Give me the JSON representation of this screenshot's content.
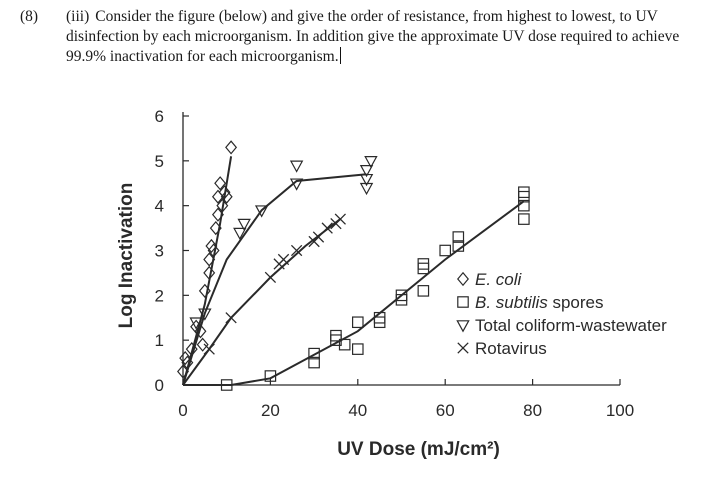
{
  "question": {
    "number": "(8)",
    "part": "(iii)",
    "text": "Consider the figure (below) and give the order of resistance, from highest to lowest, to UV disinfection by each microorganism. In addition give the approximate UV dose required to achieve 99.9% inactivation for each microorganism."
  },
  "chart_data": {
    "type": "scatter",
    "xlabel": "UV Dose  (mJ/cm²)",
    "ylabel": "Log Inactivation",
    "xlim": [
      0,
      100
    ],
    "ylim": [
      0,
      6
    ],
    "xticks": [
      "0",
      "20",
      "40",
      "60",
      "80",
      "100"
    ],
    "yticks": [
      "0",
      "1",
      "2",
      "3",
      "4",
      "5",
      "6"
    ],
    "legend_position": "right-middle",
    "grid": false,
    "series": [
      {
        "name": "E. coli",
        "name_parts": [
          {
            "text": "E. coli",
            "italic": true
          }
        ],
        "marker": "diamond",
        "points": [
          [
            0,
            0.3
          ],
          [
            0.5,
            0.6
          ],
          [
            1,
            0.5
          ],
          [
            2,
            0.8
          ],
          [
            3,
            1.3
          ],
          [
            4,
            1.2
          ],
          [
            4.5,
            0.9
          ],
          [
            5,
            2.1
          ],
          [
            6,
            2.5
          ],
          [
            6,
            2.8
          ],
          [
            6.5,
            3.1
          ],
          [
            7,
            3.0
          ],
          [
            7.5,
            3.5
          ],
          [
            8,
            3.8
          ],
          [
            8,
            4.2
          ],
          [
            8.5,
            4.5
          ],
          [
            9,
            4.0
          ],
          [
            9.5,
            4.3
          ],
          [
            10,
            4.2
          ],
          [
            11,
            5.3
          ]
        ],
        "fit": [
          [
            0,
            0
          ],
          [
            5,
            1.8
          ],
          [
            8.5,
            3.6
          ],
          [
            11,
            5.1
          ]
        ]
      },
      {
        "name": "B. subtilis spores",
        "name_parts": [
          {
            "text": "B. subtilis",
            "italic": true
          },
          {
            "text": " spores",
            "italic": false
          }
        ],
        "marker": "square",
        "points": [
          [
            10,
            0
          ],
          [
            20,
            0.2
          ],
          [
            30,
            0.5
          ],
          [
            30,
            0.7
          ],
          [
            35,
            1.0
          ],
          [
            35,
            1.1
          ],
          [
            37,
            0.9
          ],
          [
            40,
            0.8
          ],
          [
            40,
            1.4
          ],
          [
            45,
            1.4
          ],
          [
            45,
            1.5
          ],
          [
            50,
            1.9
          ],
          [
            50,
            2.0
          ],
          [
            55,
            2.1
          ],
          [
            55,
            2.6
          ],
          [
            55,
            2.7
          ],
          [
            60,
            3.0
          ],
          [
            63,
            3.1
          ],
          [
            63,
            3.3
          ],
          [
            78,
            3.7
          ],
          [
            78,
            4.0
          ],
          [
            78,
            4.2
          ],
          [
            78,
            4.3
          ]
        ],
        "fit": [
          [
            0,
            0
          ],
          [
            11,
            0
          ],
          [
            20,
            0.15
          ],
          [
            40,
            1.2
          ],
          [
            60,
            2.8
          ],
          [
            78,
            4.1
          ]
        ]
      },
      {
        "name": "Total coliform-wastewater",
        "name_parts": [
          {
            "text": "Total coliform-wastewater",
            "italic": false
          }
        ],
        "marker": "triangle-down",
        "points": [
          [
            3,
            1.4
          ],
          [
            5,
            1.6
          ],
          [
            13,
            3.4
          ],
          [
            14,
            3.6
          ],
          [
            18,
            3.9
          ],
          [
            26,
            4.5
          ],
          [
            26,
            4.9
          ],
          [
            42,
            4.4
          ],
          [
            42,
            4.6
          ],
          [
            42,
            4.8
          ],
          [
            43,
            5.0
          ]
        ],
        "fit": [
          [
            0,
            0
          ],
          [
            5,
            1.6
          ],
          [
            10,
            2.8
          ],
          [
            18,
            3.9
          ],
          [
            26,
            4.55
          ],
          [
            42,
            4.7
          ]
        ]
      },
      {
        "name": "Rotavirus",
        "name_parts": [
          {
            "text": "Rotavirus",
            "italic": false
          }
        ],
        "marker": "x",
        "points": [
          [
            6,
            0.8
          ],
          [
            11,
            1.5
          ],
          [
            20,
            2.4
          ],
          [
            22,
            2.7
          ],
          [
            23,
            2.8
          ],
          [
            26,
            3.0
          ],
          [
            30,
            3.2
          ],
          [
            31,
            3.3
          ],
          [
            33,
            3.5
          ],
          [
            35,
            3.6
          ],
          [
            36,
            3.7
          ]
        ],
        "fit": [
          [
            0,
            0
          ],
          [
            6,
            0.8
          ],
          [
            11,
            1.5
          ],
          [
            20,
            2.4
          ],
          [
            28,
            3.1
          ],
          [
            36,
            3.7
          ]
        ]
      }
    ]
  }
}
